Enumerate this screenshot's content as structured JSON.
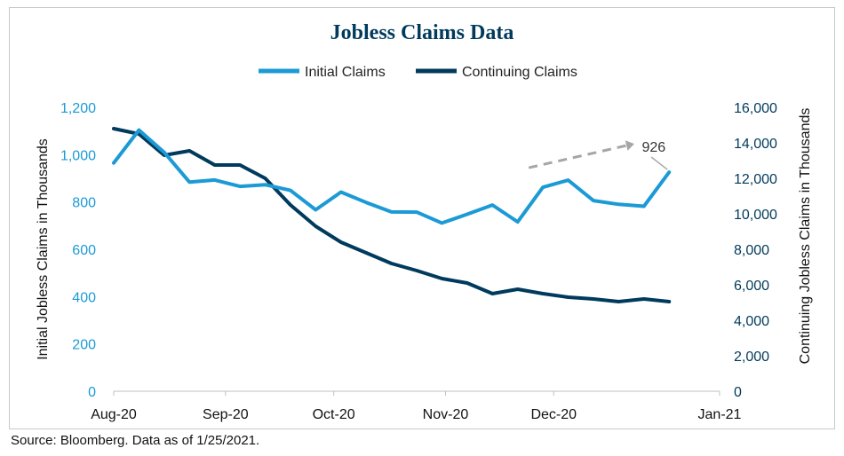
{
  "chart_data": {
    "type": "line",
    "title": "Jobless Claims Data",
    "x": [
      "2020-08-01",
      "2020-08-08",
      "2020-08-15",
      "2020-08-22",
      "2020-08-29",
      "2020-09-05",
      "2020-09-12",
      "2020-09-19",
      "2020-09-26",
      "2020-10-03",
      "2020-10-10",
      "2020-10-17",
      "2020-10-24",
      "2020-10-31",
      "2020-11-07",
      "2020-11-14",
      "2020-11-21",
      "2020-11-28",
      "2020-12-05",
      "2020-12-12",
      "2020-12-19",
      "2020-12-26",
      "2021-01-02",
      "2021-01-09",
      "2021-01-16"
    ],
    "x_ticks": [
      "Aug-20",
      "Sep-20",
      "Oct-20",
      "Nov-20",
      "Dec-20",
      "Jan-21"
    ],
    "x_tick_dates": [
      "2020-08-01",
      "2020-09-01",
      "2020-10-01",
      "2020-11-01",
      "2020-12-01",
      "2021-01-16"
    ],
    "series": [
      {
        "name": "Initial Claims",
        "axis": "left",
        "color": "#1b9ad6",
        "values": [
          965,
          1104,
          1010,
          884,
          893,
          866,
          873,
          849,
          767,
          842,
          798,
          758,
          757,
          711,
          748,
          787,
          716,
          862,
          892,
          806,
          790,
          782,
          926,
          null,
          null
        ]
      },
      {
        "name": "Continuing Claims",
        "axis": "right",
        "color": "#003a5c",
        "values": [
          14800,
          14500,
          13300,
          13550,
          12750,
          12750,
          12000,
          10500,
          9300,
          8400,
          7800,
          7200,
          6800,
          6350,
          6100,
          5500,
          5750,
          5500,
          5300,
          5200,
          5050,
          5200,
          5050,
          null,
          null
        ]
      }
    ],
    "ylabel_left": "Initial Jobless Claims in Thousands",
    "ylabel_right": "Continuing Jobless Claims in Thousands",
    "ylim_left": [
      0,
      1200
    ],
    "yticks_left": [
      0,
      200,
      400,
      600,
      800,
      1000,
      1200
    ],
    "ylim_right": [
      0,
      16000
    ],
    "yticks_right": [
      0,
      2000,
      4000,
      6000,
      8000,
      10000,
      12000,
      14000,
      16000
    ],
    "annotation": {
      "text": "926",
      "value": 926,
      "color": "#a6a6a6"
    },
    "legend": "top-center",
    "grid": false,
    "colors": {
      "title": "#003a5c",
      "left_axis": "#1b9ad6",
      "right_axis": "#003a5c"
    }
  },
  "source": "Source: Bloomberg. Data as of 1/25/2021."
}
